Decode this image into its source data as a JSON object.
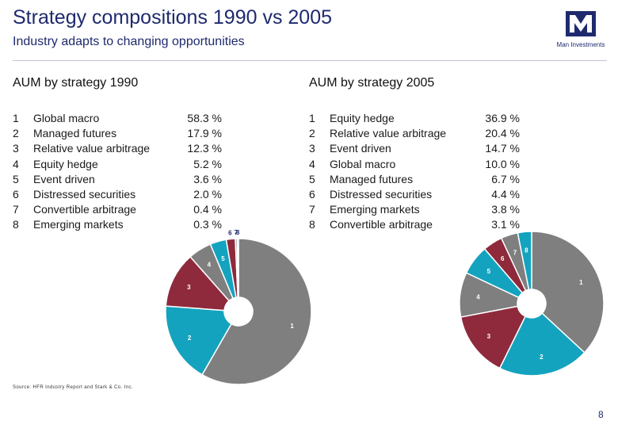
{
  "header": {
    "title": "Strategy compositions 1990 vs 2005",
    "subtitle": "Industry adapts to changing opportunities",
    "logo_text": "Man Investments"
  },
  "footer": {
    "source": "Source: HFR Industry Report and Stark & Co. Inc.",
    "page": "8"
  },
  "colors": {
    "slice": [
      "#7f7f7f",
      "#14a3be",
      "#8e2a3c",
      "#7f7f7f",
      "#14a3be",
      "#8e2a3c",
      "#7f7f7f",
      "#14a3be"
    ],
    "brand": "#1f2a6e",
    "slice_label": "#1f2a6e"
  },
  "chart_data": [
    {
      "type": "pie",
      "donut": true,
      "title": "AUM by strategy 1990",
      "items": [
        {
          "idx": "1",
          "name": "Global macro",
          "value": 58.3,
          "value_label": "58.3 %"
        },
        {
          "idx": "2",
          "name": "Managed futures",
          "value": 17.9,
          "value_label": "17.9 %"
        },
        {
          "idx": "3",
          "name": "Relative value arbitrage",
          "value": 12.3,
          "value_label": "12.3 %"
        },
        {
          "idx": "4",
          "name": "Equity hedge",
          "value": 5.2,
          "value_label": "5.2 %"
        },
        {
          "idx": "5",
          "name": "Event driven",
          "value": 3.6,
          "value_label": "3.6 %"
        },
        {
          "idx": "6",
          "name": "Distressed securities",
          "value": 2.0,
          "value_label": "2.0 %"
        },
        {
          "idx": "7",
          "name": "Convertible arbitrage",
          "value": 0.4,
          "value_label": "0.4 %"
        },
        {
          "idx": "8",
          "name": "Emerging markets",
          "value": 0.3,
          "value_label": "0.3 %"
        }
      ]
    },
    {
      "type": "pie",
      "donut": true,
      "title": "AUM by strategy 2005",
      "items": [
        {
          "idx": "1",
          "name": "Equity hedge",
          "value": 36.9,
          "value_label": "36.9 %"
        },
        {
          "idx": "2",
          "name": "Relative value arbitrage",
          "value": 20.4,
          "value_label": "20.4 %"
        },
        {
          "idx": "3",
          "name": "Event driven",
          "value": 14.7,
          "value_label": "14.7 %"
        },
        {
          "idx": "4",
          "name": "Global macro",
          "value": 10.0,
          "value_label": "10.0 %"
        },
        {
          "idx": "5",
          "name": "Managed futures",
          "value": 6.7,
          "value_label": "6.7 %"
        },
        {
          "idx": "6",
          "name": "Distressed securities",
          "value": 4.4,
          "value_label": "4.4 %"
        },
        {
          "idx": "7",
          "name": "Emerging markets",
          "value": 3.8,
          "value_label": "3.8 %"
        },
        {
          "idx": "8",
          "name": "Convertible arbitrage",
          "value": 3.1,
          "value_label": "3.1 %"
        }
      ]
    }
  ]
}
